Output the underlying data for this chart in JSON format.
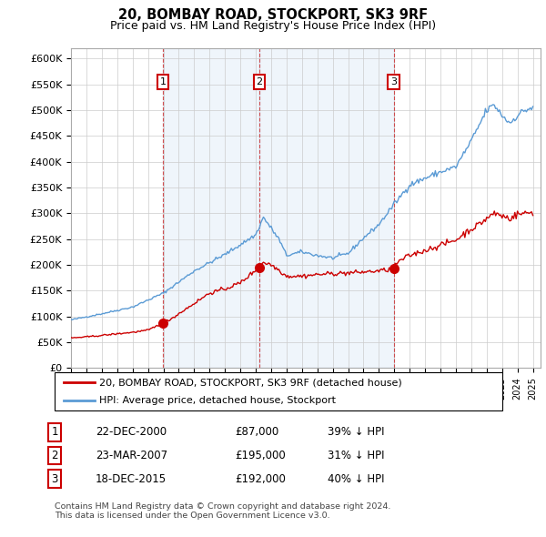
{
  "title": "20, BOMBAY ROAD, STOCKPORT, SK3 9RF",
  "subtitle": "Price paid vs. HM Land Registry's House Price Index (HPI)",
  "ylim": [
    0,
    620000
  ],
  "yticks": [
    0,
    50000,
    100000,
    150000,
    200000,
    250000,
    300000,
    350000,
    400000,
    450000,
    500000,
    550000,
    600000
  ],
  "ytick_labels": [
    "£0",
    "£50K",
    "£100K",
    "£150K",
    "£200K",
    "£250K",
    "£300K",
    "£350K",
    "£400K",
    "£450K",
    "£500K",
    "£550K",
    "£600K"
  ],
  "sale_year_nums": [
    2000.97,
    2007.23,
    2015.97
  ],
  "sale_prices": [
    87000,
    195000,
    192000
  ],
  "sale_labels": [
    "1",
    "2",
    "3"
  ],
  "line_color_red": "#cc0000",
  "line_color_blue": "#5b9bd5",
  "shade_color": "#ddeeff",
  "dashed_color": "#cc3333",
  "marker_color": "#cc0000",
  "legend_label_red": "20, BOMBAY ROAD, STOCKPORT, SK3 9RF (detached house)",
  "legend_label_blue": "HPI: Average price, detached house, Stockport",
  "table_data": [
    [
      "1",
      "22-DEC-2000",
      "£87,000",
      "39% ↓ HPI"
    ],
    [
      "2",
      "23-MAR-2007",
      "£195,000",
      "31% ↓ HPI"
    ],
    [
      "3",
      "18-DEC-2015",
      "£192,000",
      "40% ↓ HPI"
    ]
  ],
  "footnote": "Contains HM Land Registry data © Crown copyright and database right 2024.\nThis data is licensed under the Open Government Licence v3.0.",
  "bg_color": "#ffffff",
  "grid_color": "#cccccc",
  "xlim_left": 1995.0,
  "xlim_right": 2025.5
}
